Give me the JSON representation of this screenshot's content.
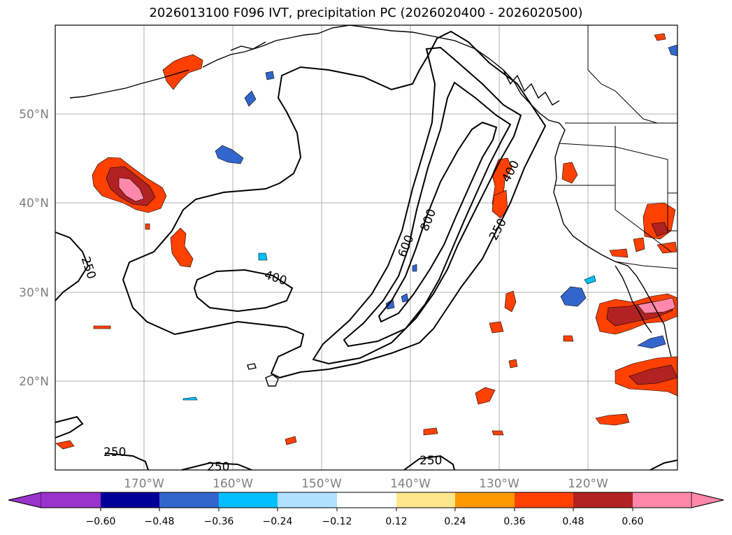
{
  "title": "2026013100 F096 IVT, precipitation PC (2026020400 - 2026020500)",
  "axes": {
    "lat_labels": [
      "50°N",
      "40°N",
      "30°N",
      "20°N"
    ],
    "lon_labels": [
      "170°W",
      "160°W",
      "150°W",
      "140°W",
      "130°W",
      "120°W"
    ]
  },
  "contour_labels": [
    "250",
    "400",
    "600",
    "800",
    "400",
    "250",
    "250",
    "250",
    "250"
  ],
  "colorbar": {
    "ticks": [
      "−0.60",
      "−0.48",
      "−0.36",
      "−0.24",
      "−0.12",
      "0.12",
      "0.24",
      "0.36",
      "0.48",
      "0.60"
    ],
    "colors": [
      "#9933cc",
      "#000099",
      "#3366cc",
      "#00bfff",
      "#b0e0ff",
      "#ffffff",
      "#ffe68a",
      "#ff9900",
      "#ff4000",
      "#b22222",
      "#ff88aa"
    ]
  },
  "colors": {
    "contour": "#000000",
    "grid": "#b0b0b0",
    "coast": "#000000"
  }
}
